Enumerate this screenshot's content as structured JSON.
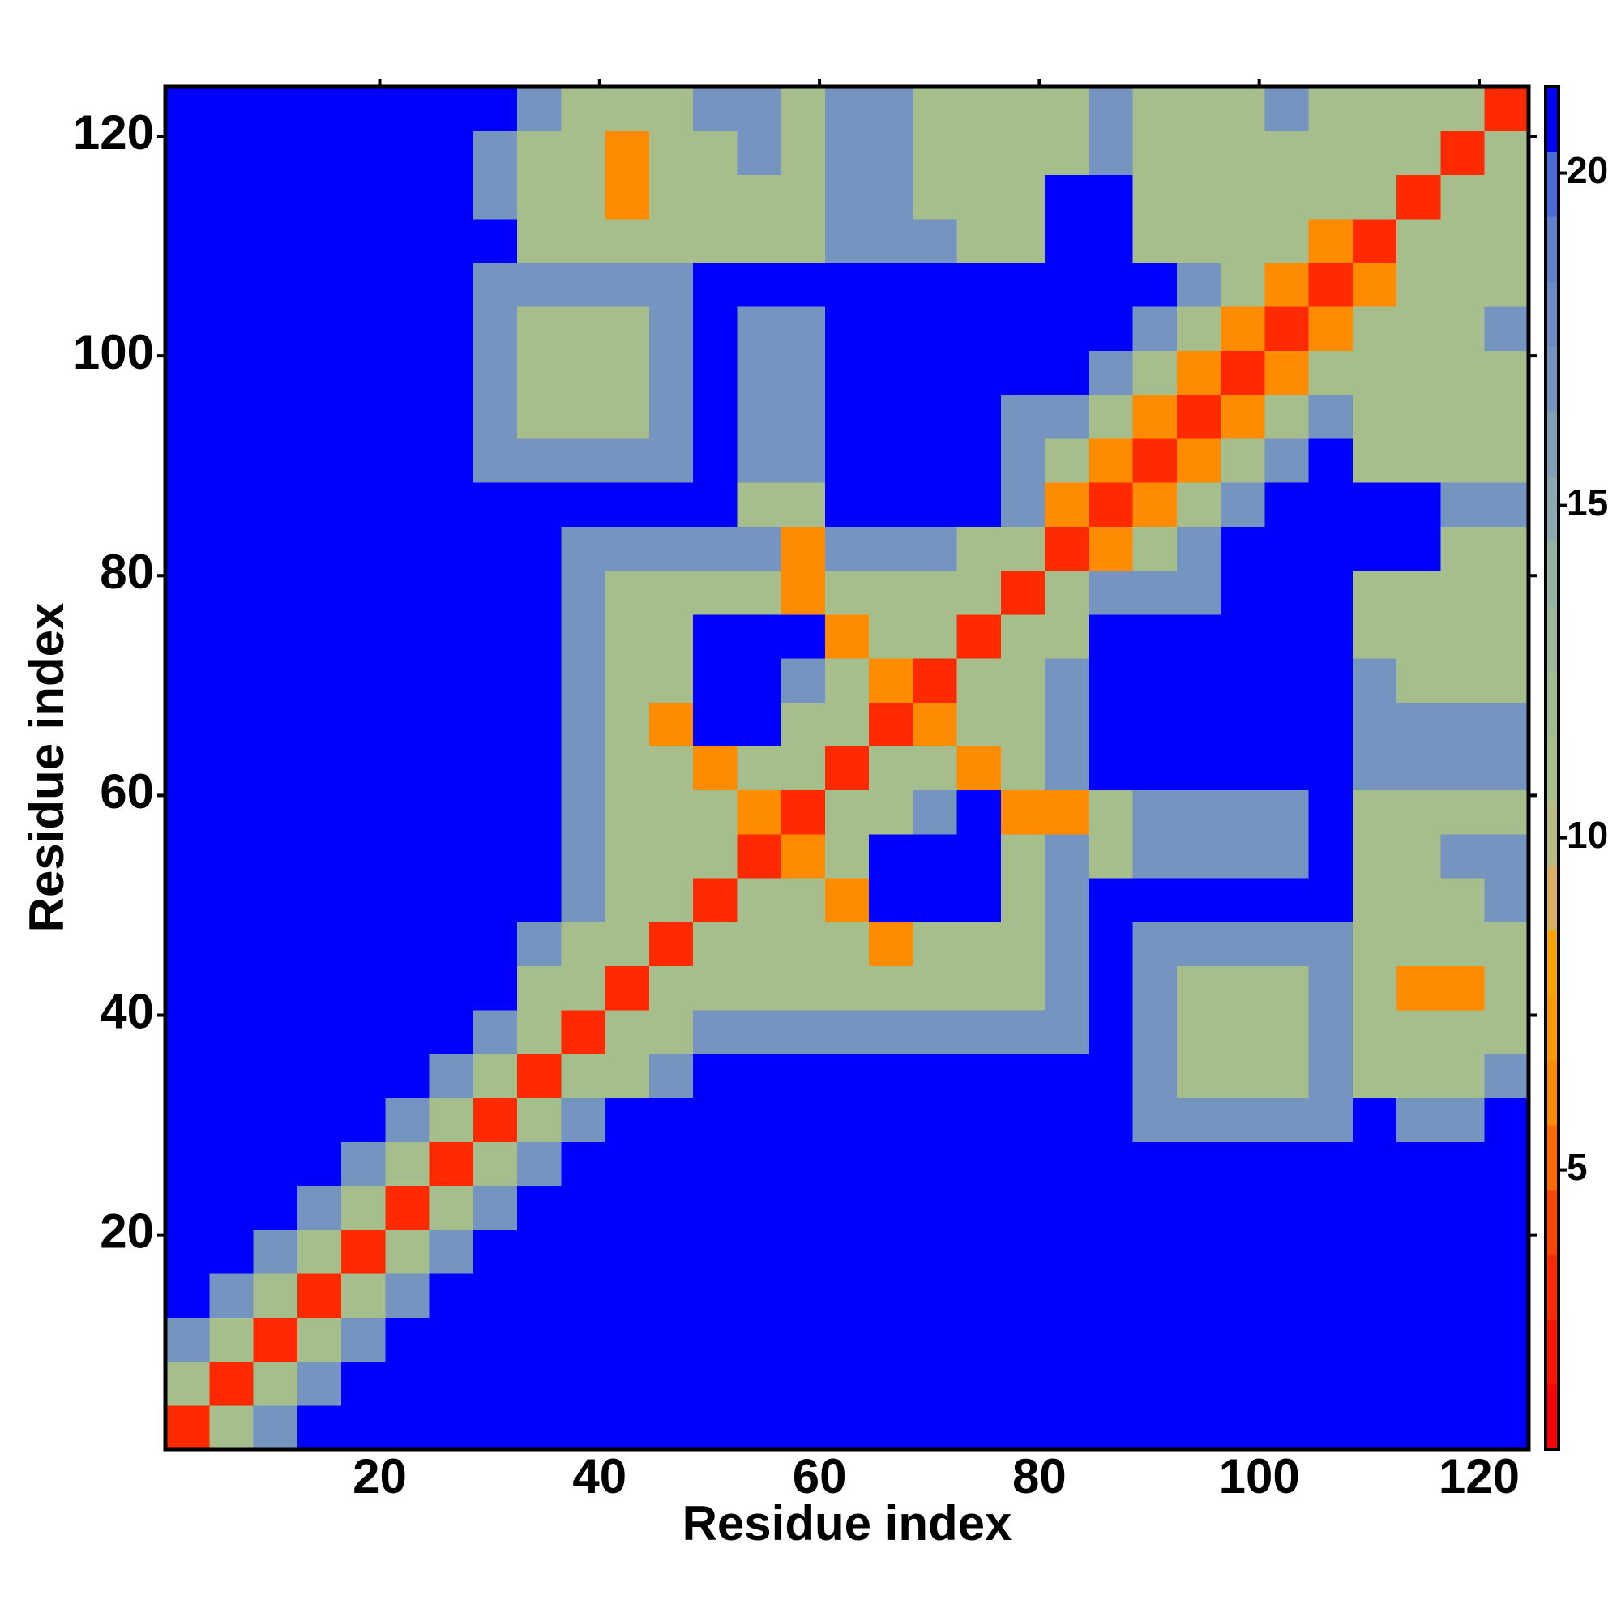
{
  "chart_data": {
    "type": "heatmap",
    "xlabel": "Residue index",
    "ylabel": "Residue index",
    "xbins": [
      0.5,
      4.5,
      8.5,
      12.5,
      16.5,
      20.5,
      24.5,
      28.5,
      32.5,
      36.5,
      40.5,
      44.5,
      48.5,
      52.5,
      56.5,
      60.5,
      64.5,
      68.5,
      72.5,
      76.5,
      80.5,
      84.5,
      88.5,
      92.5,
      96.5,
      100.5,
      104.5,
      108.5,
      112.5,
      116.5,
      120.5,
      124.5
    ],
    "ybins": [
      0.5,
      4.5,
      8.5,
      12.5,
      16.5,
      20.5,
      24.5,
      28.5,
      32.5,
      36.5,
      40.5,
      44.5,
      48.5,
      52.5,
      56.5,
      60.5,
      64.5,
      68.5,
      72.5,
      76.5,
      80.5,
      84.5,
      88.5,
      92.5,
      96.5,
      100.5,
      104.5,
      108.5,
      112.5,
      116.5,
      120.5,
      124.5
    ],
    "xlim": [
      0.5,
      124.5
    ],
    "xticks": [
      20,
      40,
      60,
      80,
      100,
      120
    ],
    "ylim": [
      0.5,
      124.5
    ],
    "yticks": [
      20,
      40,
      60,
      80,
      100,
      120
    ],
    "clim": [
      0.8,
      21.3
    ],
    "cticks": [
      5,
      10,
      15,
      20
    ],
    "colormap": [
      "#ff0000",
      "#ff1400",
      "#ff2a00",
      "#ff4400",
      "#ff6a00",
      "#ff8c00",
      "#ff9900",
      "#f7a400",
      "#d8b060",
      "#b8bc80",
      "#a6bd8c",
      "#a2bc92",
      "#9cb89a",
      "#94b2a2",
      "#8aa8ae",
      "#7f9eb8",
      "#7594c0",
      "#6b8ac6",
      "#5f80cc",
      "#4a6ad8",
      "#0000ff"
    ],
    "values": [
      [
        3,
        11,
        17,
        21,
        21,
        21,
        21,
        21,
        21,
        21,
        21,
        21,
        21,
        21,
        21,
        21,
        21,
        21,
        21,
        21,
        21,
        21,
        21,
        21,
        21,
        21,
        21,
        21,
        21,
        21,
        21
      ],
      [
        11,
        3,
        11,
        17,
        21,
        21,
        21,
        21,
        21,
        21,
        21,
        21,
        21,
        21,
        21,
        21,
        21,
        21,
        21,
        21,
        21,
        21,
        21,
        21,
        21,
        21,
        21,
        21,
        21,
        21,
        21
      ],
      [
        17,
        11,
        3,
        11,
        17,
        21,
        21,
        21,
        21,
        21,
        21,
        21,
        21,
        21,
        21,
        21,
        21,
        21,
        21,
        21,
        21,
        21,
        21,
        21,
        21,
        21,
        21,
        21,
        21,
        21,
        21
      ],
      [
        21,
        17,
        11,
        3,
        11,
        17,
        21,
        21,
        21,
        21,
        21,
        21,
        21,
        21,
        21,
        21,
        21,
        21,
        21,
        21,
        21,
        21,
        21,
        21,
        21,
        21,
        21,
        21,
        21,
        21,
        21
      ],
      [
        21,
        21,
        17,
        11,
        3,
        11,
        17,
        21,
        21,
        21,
        21,
        21,
        21,
        21,
        21,
        21,
        21,
        21,
        21,
        21,
        21,
        21,
        21,
        21,
        21,
        21,
        21,
        21,
        21,
        21,
        21
      ],
      [
        21,
        21,
        21,
        17,
        11,
        3,
        11,
        17,
        21,
        21,
        21,
        21,
        21,
        21,
        21,
        21,
        21,
        21,
        21,
        21,
        21,
        21,
        21,
        21,
        21,
        21,
        21,
        21,
        21,
        21,
        21
      ],
      [
        21,
        21,
        21,
        21,
        17,
        11,
        3,
        11,
        17,
        21,
        21,
        21,
        21,
        21,
        21,
        21,
        21,
        21,
        21,
        21,
        21,
        21,
        21,
        21,
        21,
        21,
        21,
        21,
        21,
        21,
        21
      ],
      [
        21,
        21,
        21,
        21,
        21,
        17,
        11,
        3,
        11,
        17,
        21,
        21,
        21,
        21,
        21,
        21,
        21,
        21,
        21,
        21,
        21,
        21,
        17,
        17,
        17,
        17,
        17,
        21,
        17,
        17,
        21
      ],
      [
        21,
        21,
        21,
        21,
        21,
        21,
        17,
        11,
        3,
        11,
        11,
        17,
        21,
        21,
        21,
        21,
        21,
        21,
        21,
        21,
        21,
        21,
        17,
        11,
        11,
        11,
        17,
        11,
        11,
        11,
        17
      ],
      [
        21,
        21,
        21,
        21,
        21,
        21,
        21,
        17,
        11,
        3,
        11,
        11,
        17,
        17,
        17,
        17,
        17,
        17,
        17,
        17,
        17,
        21,
        17,
        11,
        11,
        11,
        17,
        11,
        11,
        11,
        11
      ],
      [
        21,
        21,
        21,
        21,
        21,
        21,
        21,
        21,
        11,
        11,
        3,
        11,
        11,
        11,
        11,
        11,
        11,
        11,
        11,
        11,
        17,
        21,
        17,
        11,
        11,
        11,
        17,
        11,
        6,
        6,
        11
      ],
      [
        21,
        21,
        21,
        21,
        21,
        21,
        21,
        21,
        17,
        11,
        11,
        3,
        11,
        11,
        11,
        11,
        6,
        11,
        11,
        11,
        17,
        21,
        17,
        17,
        17,
        17,
        17,
        11,
        11,
        11,
        11
      ],
      [
        21,
        21,
        21,
        21,
        21,
        21,
        21,
        21,
        21,
        17,
        11,
        11,
        3,
        11,
        11,
        6,
        21,
        21,
        21,
        11,
        17,
        21,
        21,
        21,
        21,
        21,
        21,
        11,
        11,
        11,
        17
      ],
      [
        21,
        21,
        21,
        21,
        21,
        21,
        21,
        21,
        21,
        17,
        11,
        11,
        11,
        3,
        6,
        11,
        21,
        21,
        21,
        11,
        17,
        11,
        17,
        17,
        17,
        17,
        21,
        11,
        11,
        17,
        17
      ],
      [
        21,
        21,
        21,
        21,
        21,
        21,
        21,
        21,
        21,
        17,
        11,
        11,
        11,
        6,
        3,
        11,
        11,
        17,
        21,
        6,
        6,
        11,
        17,
        17,
        17,
        17,
        21,
        11,
        11,
        11,
        11
      ],
      [
        21,
        21,
        21,
        21,
        21,
        21,
        21,
        21,
        21,
        17,
        11,
        11,
        6,
        11,
        11,
        3,
        11,
        11,
        6,
        11,
        17,
        21,
        21,
        21,
        21,
        21,
        21,
        17,
        17,
        17,
        17
      ],
      [
        21,
        21,
        21,
        21,
        21,
        21,
        21,
        21,
        21,
        17,
        11,
        6,
        21,
        21,
        11,
        11,
        3,
        6,
        11,
        11,
        17,
        21,
        21,
        21,
        21,
        21,
        21,
        17,
        17,
        17,
        17
      ],
      [
        21,
        21,
        21,
        21,
        21,
        21,
        21,
        21,
        21,
        17,
        11,
        11,
        21,
        21,
        17,
        11,
        6,
        3,
        11,
        11,
        17,
        21,
        21,
        21,
        21,
        21,
        21,
        17,
        11,
        11,
        11
      ],
      [
        21,
        21,
        21,
        21,
        21,
        21,
        21,
        21,
        21,
        17,
        11,
        11,
        21,
        21,
        21,
        6,
        11,
        11,
        3,
        11,
        11,
        21,
        21,
        21,
        21,
        21,
        21,
        11,
        11,
        11,
        11
      ],
      [
        21,
        21,
        21,
        21,
        21,
        21,
        21,
        21,
        21,
        17,
        11,
        11,
        11,
        11,
        6,
        11,
        11,
        11,
        11,
        3,
        11,
        17,
        17,
        17,
        21,
        21,
        21,
        11,
        11,
        11,
        11
      ],
      [
        21,
        21,
        21,
        21,
        21,
        21,
        21,
        21,
        21,
        17,
        17,
        17,
        17,
        17,
        6,
        17,
        17,
        17,
        11,
        11,
        3,
        6,
        11,
        17,
        21,
        21,
        21,
        21,
        21,
        11,
        11
      ],
      [
        21,
        21,
        21,
        21,
        21,
        21,
        21,
        21,
        21,
        21,
        21,
        21,
        21,
        11,
        11,
        21,
        21,
        21,
        21,
        17,
        6,
        3,
        6,
        11,
        17,
        21,
        21,
        21,
        21,
        17,
        17
      ],
      [
        21,
        21,
        21,
        21,
        21,
        21,
        21,
        17,
        17,
        17,
        17,
        17,
        21,
        17,
        17,
        21,
        21,
        21,
        21,
        17,
        11,
        6,
        3,
        6,
        11,
        17,
        21,
        11,
        11,
        11,
        11
      ],
      [
        21,
        21,
        21,
        21,
        21,
        21,
        21,
        17,
        11,
        11,
        11,
        17,
        21,
        17,
        17,
        21,
        21,
        21,
        21,
        17,
        17,
        11,
        6,
        3,
        6,
        11,
        17,
        11,
        11,
        11,
        11
      ],
      [
        21,
        21,
        21,
        21,
        21,
        21,
        21,
        17,
        11,
        11,
        11,
        17,
        21,
        17,
        17,
        21,
        21,
        21,
        21,
        21,
        21,
        17,
        11,
        6,
        3,
        6,
        11,
        11,
        11,
        11,
        11
      ],
      [
        21,
        21,
        21,
        21,
        21,
        21,
        21,
        17,
        11,
        11,
        11,
        17,
        21,
        17,
        17,
        21,
        21,
        21,
        21,
        21,
        21,
        21,
        17,
        11,
        6,
        3,
        6,
        11,
        11,
        11,
        17
      ],
      [
        21,
        21,
        21,
        21,
        21,
        21,
        21,
        17,
        17,
        17,
        17,
        17,
        21,
        21,
        21,
        21,
        21,
        21,
        21,
        21,
        21,
        21,
        21,
        17,
        11,
        6,
        3,
        6,
        11,
        11,
        11
      ],
      [
        21,
        21,
        21,
        21,
        21,
        21,
        21,
        21,
        11,
        11,
        11,
        11,
        11,
        11,
        11,
        17,
        17,
        17,
        11,
        11,
        21,
        21,
        11,
        11,
        11,
        11,
        6,
        3,
        11,
        11,
        11
      ],
      [
        21,
        21,
        21,
        21,
        21,
        21,
        21,
        17,
        11,
        11,
        6,
        11,
        11,
        11,
        11,
        17,
        17,
        11,
        11,
        11,
        21,
        21,
        11,
        11,
        11,
        11,
        11,
        11,
        3,
        11,
        11
      ],
      [
        21,
        21,
        21,
        21,
        21,
        21,
        21,
        17,
        11,
        11,
        6,
        11,
        11,
        17,
        11,
        17,
        17,
        11,
        11,
        11,
        11,
        17,
        11,
        11,
        11,
        11,
        11,
        11,
        11,
        3,
        11
      ],
      [
        21,
        21,
        21,
        21,
        21,
        21,
        21,
        21,
        17,
        11,
        11,
        11,
        17,
        17,
        11,
        17,
        17,
        11,
        11,
        11,
        11,
        17,
        11,
        11,
        11,
        17,
        11,
        11,
        11,
        11,
        3
      ]
    ]
  }
}
